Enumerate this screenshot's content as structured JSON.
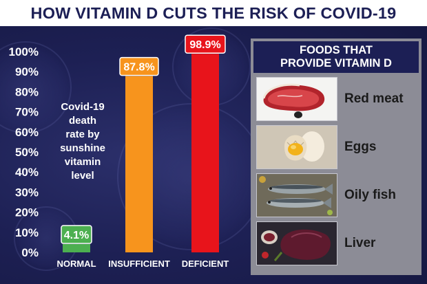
{
  "title": "HOW VITAMIN D CUTS THE RISK OF COVID-19",
  "chart_data": {
    "type": "bar",
    "categories": [
      "NORMAL",
      "INSUFFICIENT",
      "DEFICIENT"
    ],
    "values": [
      4.1,
      87.8,
      98.9
    ],
    "value_labels": [
      "4.1%",
      "87.8%",
      "98.9%"
    ],
    "bar_colors": [
      "#4caf50",
      "#f7941d",
      "#e8141b"
    ],
    "ylim": [
      0,
      100
    ],
    "yticks": [
      0,
      10,
      20,
      30,
      40,
      50,
      60,
      70,
      80,
      90,
      100
    ],
    "ytick_labels": [
      "0%",
      "10%",
      "20%",
      "30%",
      "40%",
      "50%",
      "60%",
      "70%",
      "80%",
      "90%",
      "100%"
    ],
    "annotation": [
      "Covid-19",
      "death",
      "rate by",
      "sunshine",
      "vitamin",
      "level"
    ],
    "grid": false,
    "legend": "none"
  },
  "panel": {
    "title_line1": "FOODS THAT",
    "title_line2": "PROVIDE VITAMIN D",
    "items": [
      {
        "label": "Red meat",
        "icon": "red-meat-photo"
      },
      {
        "label": "Eggs",
        "icon": "eggs-photo"
      },
      {
        "label": "Oily fish",
        "icon": "oily-fish-photo"
      },
      {
        "label": "Liver",
        "icon": "liver-photo"
      }
    ]
  },
  "colors": {
    "background": "#1d2054",
    "title_text": "#1c1f55",
    "panel_bg": "#8c8c96",
    "panel_header_bg": "#1c1f55"
  }
}
